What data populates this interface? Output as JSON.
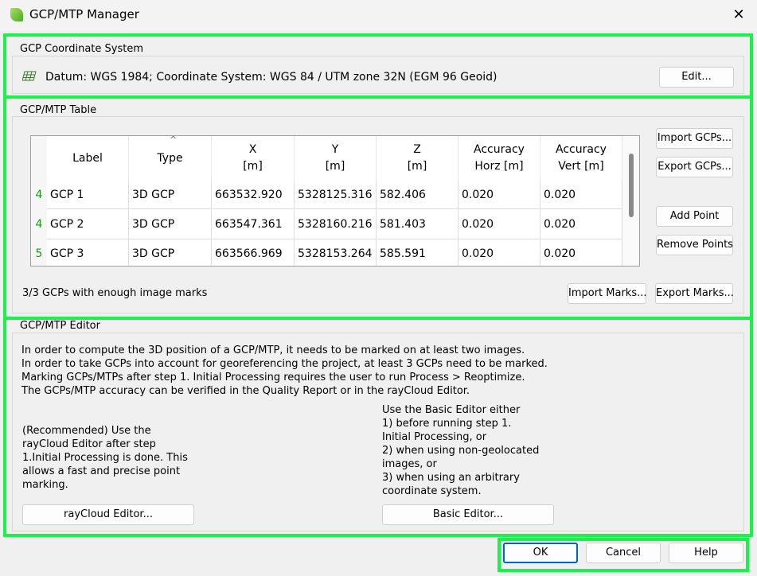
{
  "window": {
    "title": "GCP/MTP Manager",
    "close": "✕"
  },
  "coord": {
    "group": "GCP Coordinate System",
    "text": "Datum: WGS 1984; Coordinate System: WGS 84 / UTM zone 32N (EGM 96 Geoid)",
    "edit": "Edit..."
  },
  "table": {
    "group": "GCP/MTP Table",
    "headers": [
      "Label",
      "Type",
      "X\n[m]",
      "Y\n[m]",
      "Z\n[m]",
      "Accuracy\nHorz [m]",
      "Accuracy\nVert [m]"
    ],
    "rows": [
      {
        "marks": "4",
        "label": "GCP 1",
        "type": "3D GCP",
        "x": "663532.920",
        "y": "5328125.316",
        "z": "582.406",
        "acc_h": "0.020",
        "acc_v": "0.020"
      },
      {
        "marks": "4",
        "label": "GCP 2",
        "type": "3D GCP",
        "x": "663547.361",
        "y": "5328160.216",
        "z": "581.403",
        "acc_h": "0.020",
        "acc_v": "0.020"
      },
      {
        "marks": "5",
        "label": "GCP 3",
        "type": "3D GCP",
        "x": "663566.969",
        "y": "5328153.264",
        "z": "585.591",
        "acc_h": "0.020",
        "acc_v": "0.020"
      }
    ],
    "import_gcps": "Import GCPs...",
    "export_gcps": "Export GCPs...",
    "add_point": "Add Point",
    "remove_points": "Remove Points",
    "status": "3/3 GCPs with enough image marks",
    "import_marks": "Import Marks...",
    "export_marks": "Export Marks..."
  },
  "editor": {
    "group": "GCP/MTP Editor",
    "info": [
      "In order to compute the 3D position of a GCP/MTP, it needs to be marked on at least two images.",
      "In order to take GCPs into account for georeferencing the project, at least 3 GCPs need to be marked.",
      "Marking GCPs/MTPs after step 1. Initial Processing requires the user to run Process > Reoptimize.",
      "The GCPs/MTP accuracy can be verified in the Quality Report or in the rayCloud Editor."
    ],
    "raycloud_text": "(Recommended) Use the rayCloud Editor after step 1.Initial Processing is done. This allows a fast and precise point marking.",
    "basic_text": "Use the Basic Editor either\n1) before running step 1. Initial Processing, or\n2) when using non-geolocated images, or\n3) when using an arbitrary coordinate system.",
    "raycloud_button": "rayCloud Editor...",
    "basic_button": "Basic Editor..."
  },
  "footer": {
    "ok": "OK",
    "cancel": "Cancel",
    "help": "Help"
  },
  "colors": {
    "highlight": "#19f24a",
    "marks": "#1a9a1a"
  }
}
